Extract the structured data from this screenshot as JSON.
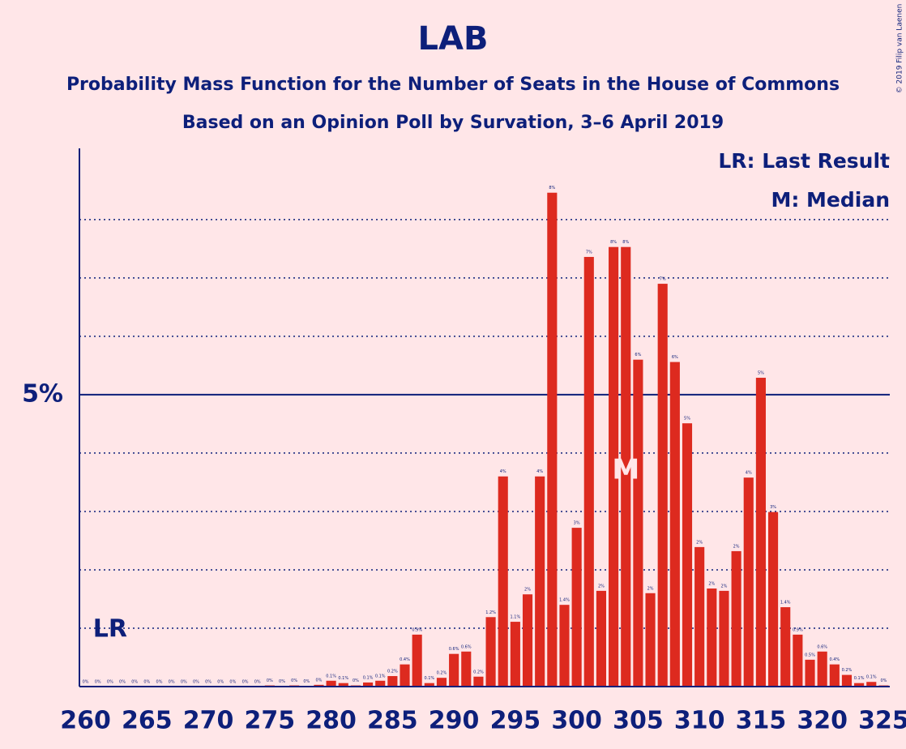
{
  "chart_data": {
    "type": "bar",
    "title": "LAB",
    "subtitle": [
      "Probability Mass Function for the Number of Seats in the House of Commons",
      "Based on an Opinion Poll by Survation, 3–6 April 2019"
    ],
    "copyright": "© 2019 Filip van Laenen",
    "legend": [
      "LR: Last Result",
      "M: Median"
    ],
    "color": "#dd2a1f",
    "x": [
      260,
      261,
      262,
      263,
      264,
      265,
      266,
      267,
      268,
      269,
      270,
      271,
      272,
      273,
      274,
      275,
      276,
      277,
      278,
      279,
      280,
      281,
      282,
      283,
      284,
      285,
      286,
      287,
      288,
      289,
      290,
      291,
      292,
      293,
      294,
      295,
      296,
      297,
      298,
      299,
      300,
      301,
      302,
      303,
      304,
      305,
      306,
      307,
      308,
      309,
      310,
      311,
      312,
      313,
      314,
      315,
      316,
      317,
      318,
      319,
      320,
      321,
      322,
      323,
      324,
      325
    ],
    "values": [
      0,
      0,
      0,
      0,
      0,
      0,
      0,
      0,
      0,
      0,
      0,
      0,
      0,
      0,
      0,
      0.02,
      0.01,
      0.02,
      0.01,
      0.03,
      0.1,
      0.06,
      0.02,
      0.07,
      0.1,
      0.18,
      0.38,
      0.89,
      0.06,
      0.15,
      0.56,
      0.6,
      0.17,
      1.19,
      3.6,
      1.11,
      1.58,
      3.6,
      8.46,
      1.4,
      2.72,
      7.36,
      1.64,
      7.53,
      7.53,
      5.6,
      1.6,
      6.9,
      5.56,
      4.51,
      2.39,
      1.68,
      1.64,
      2.32,
      3.58,
      5.29,
      2.99,
      1.36,
      0.89,
      0.46,
      0.6,
      0.38,
      0.2,
      0.06,
      0.08,
      0.02
    ],
    "value_labels": [
      "0%",
      "0%",
      "0%",
      "0%",
      "0%",
      "0%",
      "0%",
      "0%",
      "0%",
      "0%",
      "0%",
      "0%",
      "0%",
      "0%",
      "0%",
      "0%",
      "0%",
      "0%",
      "0%",
      "0%",
      "0.1%",
      "0.1%",
      "0%",
      "0.1%",
      "0.1%",
      "0.2%",
      "0.4%",
      "0.9%",
      "0.1%",
      "0.2%",
      "0.6%",
      "0.6%",
      "0.2%",
      "1.2%",
      "4%",
      "1.1%",
      "2%",
      "4%",
      "8%",
      "1.4%",
      "3%",
      "7%",
      "2%",
      "8%",
      "8%",
      "6%",
      "2%",
      "7%",
      "6%",
      "5%",
      "2%",
      "2%",
      "2%",
      "2%",
      "4%",
      "5%",
      "3%",
      "1.4%",
      "0.9%",
      "0.5%",
      "0.6%",
      "0.4%",
      "0.2%",
      "0.1%",
      "0.1%",
      "0%"
    ],
    "xlim": [
      259.5,
      325.5
    ],
    "xticks": [
      260,
      265,
      270,
      275,
      280,
      285,
      290,
      295,
      300,
      305,
      310,
      315,
      320,
      325
    ],
    "ylim": [
      0,
      9.22
    ],
    "yticks": [
      {
        "value": 5,
        "label": "5%"
      }
    ],
    "grid_lines": [
      1,
      2,
      3,
      4,
      6,
      7,
      8
    ],
    "last_result": {
      "label": "LR",
      "x": 262
    },
    "median": {
      "label": "M",
      "x": 304
    }
  }
}
